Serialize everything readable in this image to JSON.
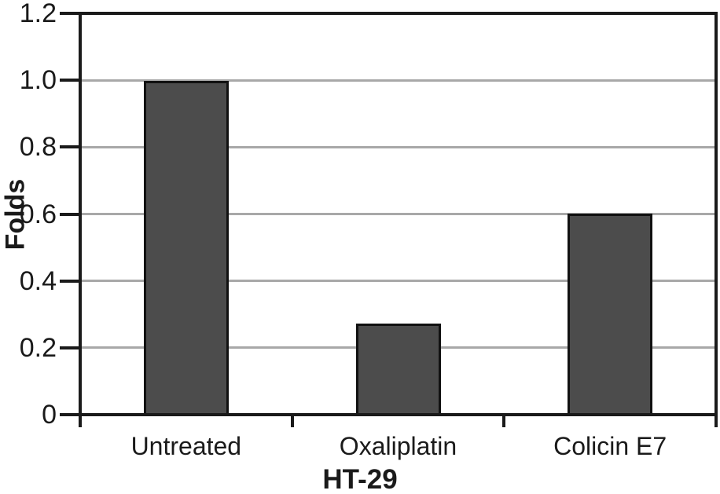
{
  "chart_data": {
    "type": "bar",
    "categories": [
      "Untreated",
      "Oxaliplatin",
      "Colicin E7"
    ],
    "values": [
      1.0,
      0.27,
      0.6
    ],
    "title": "",
    "xlabel": "HT-29",
    "ylabel": "Folds",
    "ylim": [
      0,
      1.2
    ],
    "ytick_values": [
      0,
      0.2,
      0.4,
      0.6,
      0.8,
      1.0,
      1.2
    ],
    "ytick_labels": [
      "0",
      "0.2",
      "0.4",
      "0.6",
      "0.8",
      "1.0",
      "1.2"
    ],
    "grid": "horizontal gridlines at each y tick, drawn behind bars",
    "legend_position": "none",
    "colors": {
      "bar_fill": "#4c4c4c",
      "bar_border": "#111111",
      "axis": "#1a1a1a",
      "gridline": "#a8a8a8",
      "text": "#1a1a1a",
      "background": "#ffffff"
    }
  }
}
